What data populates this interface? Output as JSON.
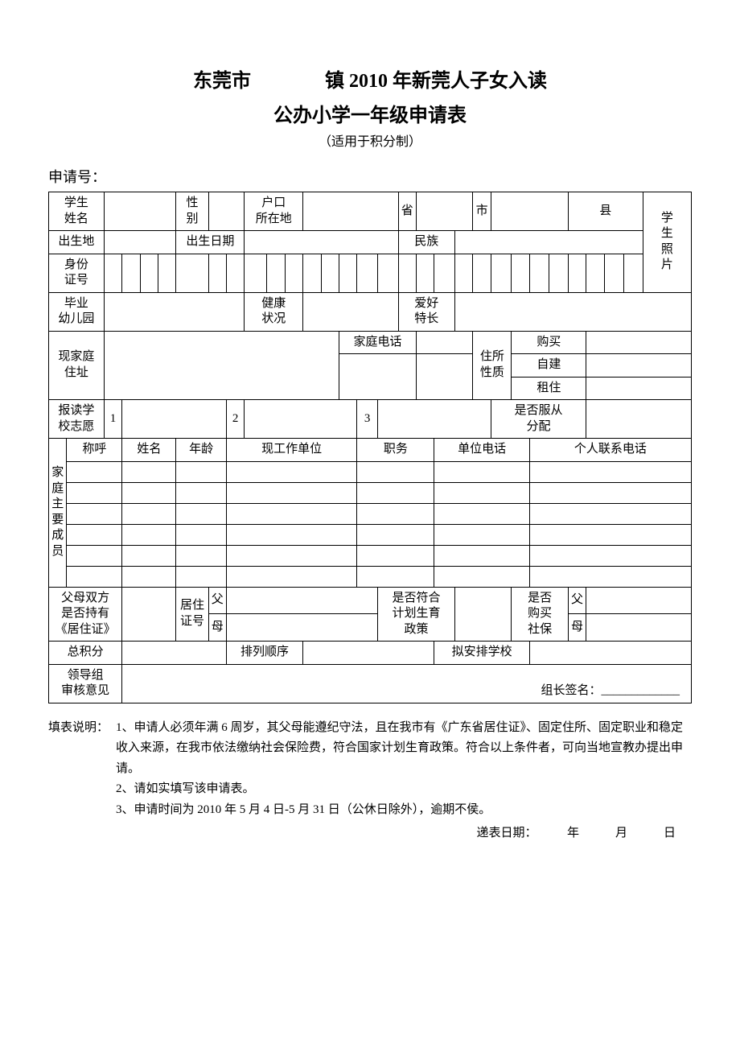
{
  "title_line1_a": "东莞市",
  "title_line1_b": "镇 2010 年新莞人子女入读",
  "title_line2": "公办小学一年级申请表",
  "subtitle": "（适用于积分制）",
  "application_no_label": "申请号：",
  "labels": {
    "student_name": "学生\n姓名",
    "gender": "性\n别",
    "hukou": "户口\n所在地",
    "province": "省",
    "city": "市",
    "county": "县",
    "photo": "学\n生\n照\n片",
    "birthplace": "出生地",
    "birthdate": "出生日期",
    "ethnicity": "民族",
    "id_number": "身份\n证号",
    "kindergarten": "毕业\n幼儿园",
    "health": "健康\n状况",
    "hobby": "爱好\n特长",
    "home_address": "现家庭\n住址",
    "home_phone": "家庭电话",
    "residence_type": "住所\n性质",
    "buy": "购买",
    "selfbuild": "自建",
    "rent": "租住",
    "school_choice": "报读学\n校志愿",
    "obey_assign": "是否服从\n分配",
    "family_members": "家\n庭\n主\n要\n成\n员",
    "relation": "称呼",
    "name": "姓名",
    "age": "年龄",
    "workplace": "现工作单位",
    "position": "职务",
    "unit_phone": "单位电话",
    "personal_phone": "个人联系电话",
    "both_parents_permit": "父母双方\n是否持有\n《居住证》",
    "permit_no": "居住\n证号",
    "father": "父",
    "mother": "母",
    "family_planning": "是否符合\n计划生育\n政策",
    "buy_social": "是否\n购买\n社保",
    "total_score": "总积分",
    "rank": "排列顺序",
    "assigned_school": "拟安排学校",
    "review": "领导组\n审核意见",
    "leader_sig": "组长签名：_____________"
  },
  "choice": {
    "one": "1",
    "two": "2",
    "three": "3"
  },
  "notes": {
    "label": "填表说明：",
    "n1": "1、申请人必须年满 6 周岁，其父母能遵纪守法，且在我市有《广东省居住证》、固定住所、固定职业和稳定收入来源，在我市依法缴纳社会保险费，符合国家计划生育政策。符合以上条件者，可向当地宣教办提出申请。",
    "n2": "2、请如实填写该申请表。",
    "n3": "3、申请时间为 2010 年 5 月 4 日-5 月 31 日（公休日除外），逾期不侯。"
  },
  "submit_date": "递表日期：　　　年　　　月　　　日",
  "colors": {
    "text": "#000000",
    "border": "#000000",
    "background": "#ffffff"
  },
  "typography": {
    "title_pt": 24,
    "body_pt": 15,
    "family": "SimSun"
  }
}
